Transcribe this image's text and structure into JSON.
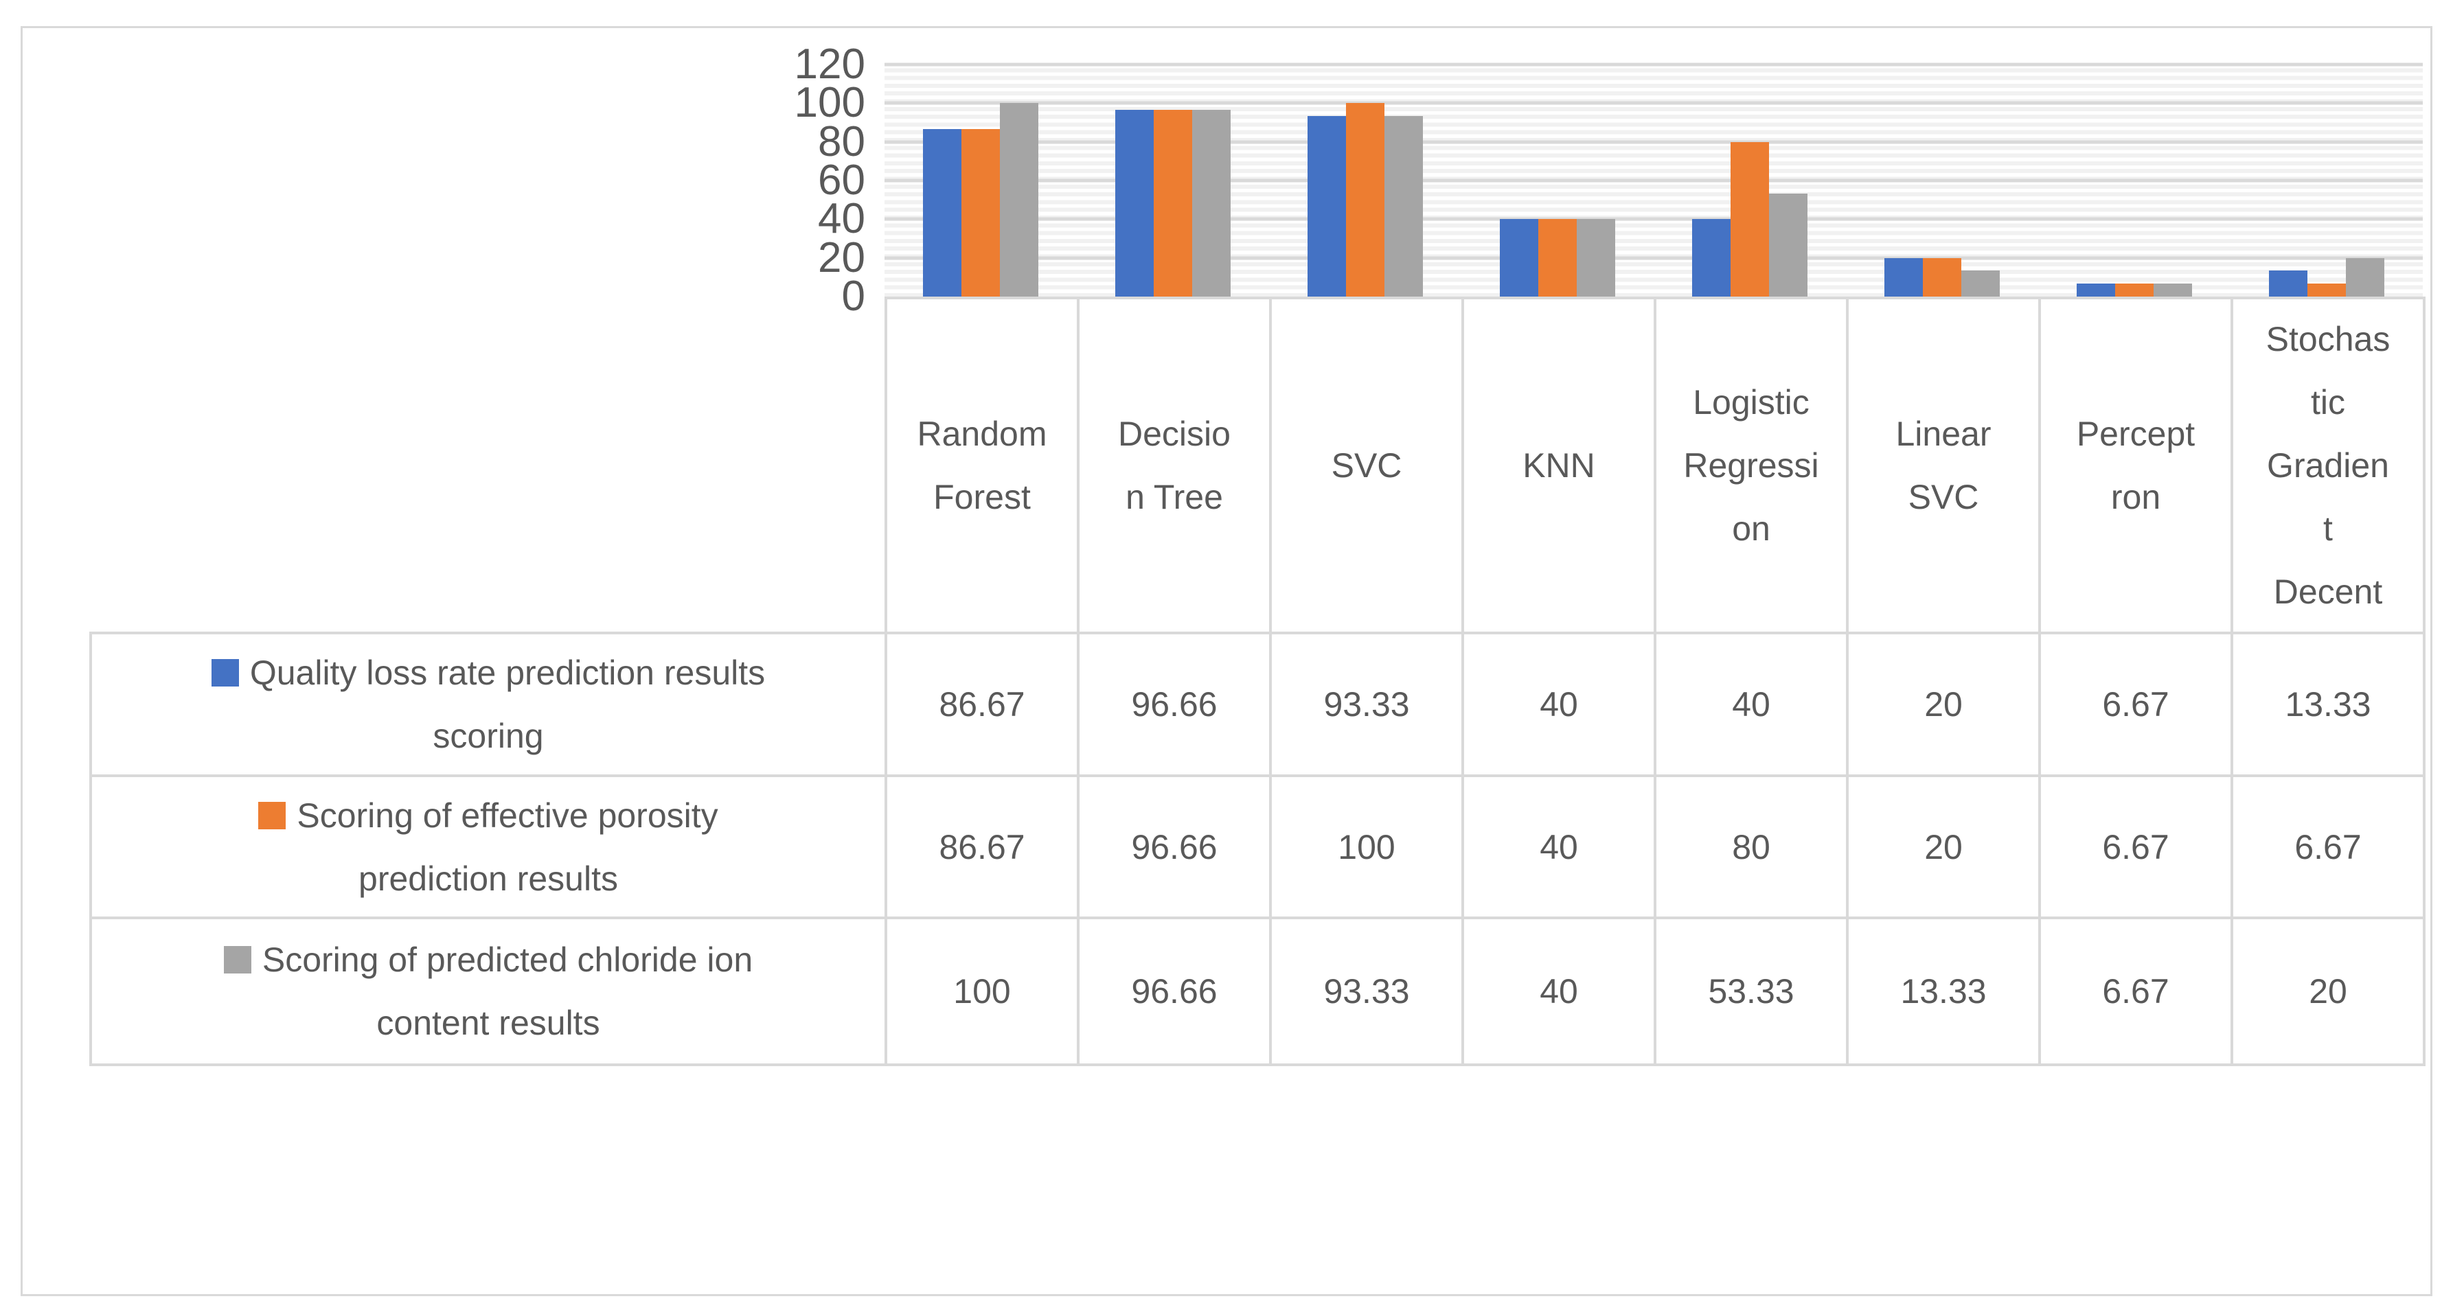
{
  "figure": {
    "background": "#FFFFFF",
    "border_color": "#D9D9D9"
  },
  "colors": {
    "axis_text": "#595959",
    "table_text": "#595959",
    "table_border": "#D9D9D9",
    "grid_major": "#D9D9D9",
    "grid_minor": "#F1F1F1",
    "series_blue": "#4472C4",
    "series_orange": "#ED7D31",
    "series_gray": "#A5A5A5"
  },
  "chart_data": {
    "type": "bar",
    "title": "",
    "xlabel": "",
    "ylabel": "",
    "ylim": [
      0,
      120
    ],
    "y_ticks": [
      "120",
      "100",
      "80",
      "60",
      "40",
      "20",
      "0"
    ],
    "y_major_interval": 20,
    "y_minor_interval": 4,
    "grid": "horizontal major + minor",
    "legend_position": "left column of data table",
    "categories": [
      "Random Forest",
      "Decision Tree",
      "SVC",
      "KNN",
      "Logistic Regression",
      "Linear SVC",
      "Perceptron",
      "Stochastic Gradient Decent"
    ],
    "categories_display": [
      "Random\nForest",
      "Decisio\nn Tree",
      "SVC",
      "KNN",
      "Logistic\nRegressi\non",
      "Linear\nSVC",
      "Percept\nron",
      "Stochas\ntic\nGradien\nt\nDecent"
    ],
    "series": [
      {
        "name": "Quality loss rate prediction results scoring",
        "name_display": "Quality loss rate prediction results\nscoring",
        "color": "#4472C4",
        "values": [
          86.67,
          96.66,
          93.33,
          40,
          40,
          20,
          6.67,
          13.33
        ]
      },
      {
        "name": "Scoring of effective porosity prediction results",
        "name_display": "Scoring of effective porosity\nprediction results",
        "color": "#ED7D31",
        "values": [
          86.67,
          96.66,
          100,
          40,
          80,
          20,
          6.67,
          6.67
        ]
      },
      {
        "name": "Scoring of predicted chloride ion content results",
        "name_display": "Scoring of predicted chloride ion\ncontent results",
        "color": "#A5A5A5",
        "values": [
          100,
          96.66,
          93.33,
          40,
          53.33,
          13.33,
          6.67,
          20
        ]
      }
    ]
  }
}
